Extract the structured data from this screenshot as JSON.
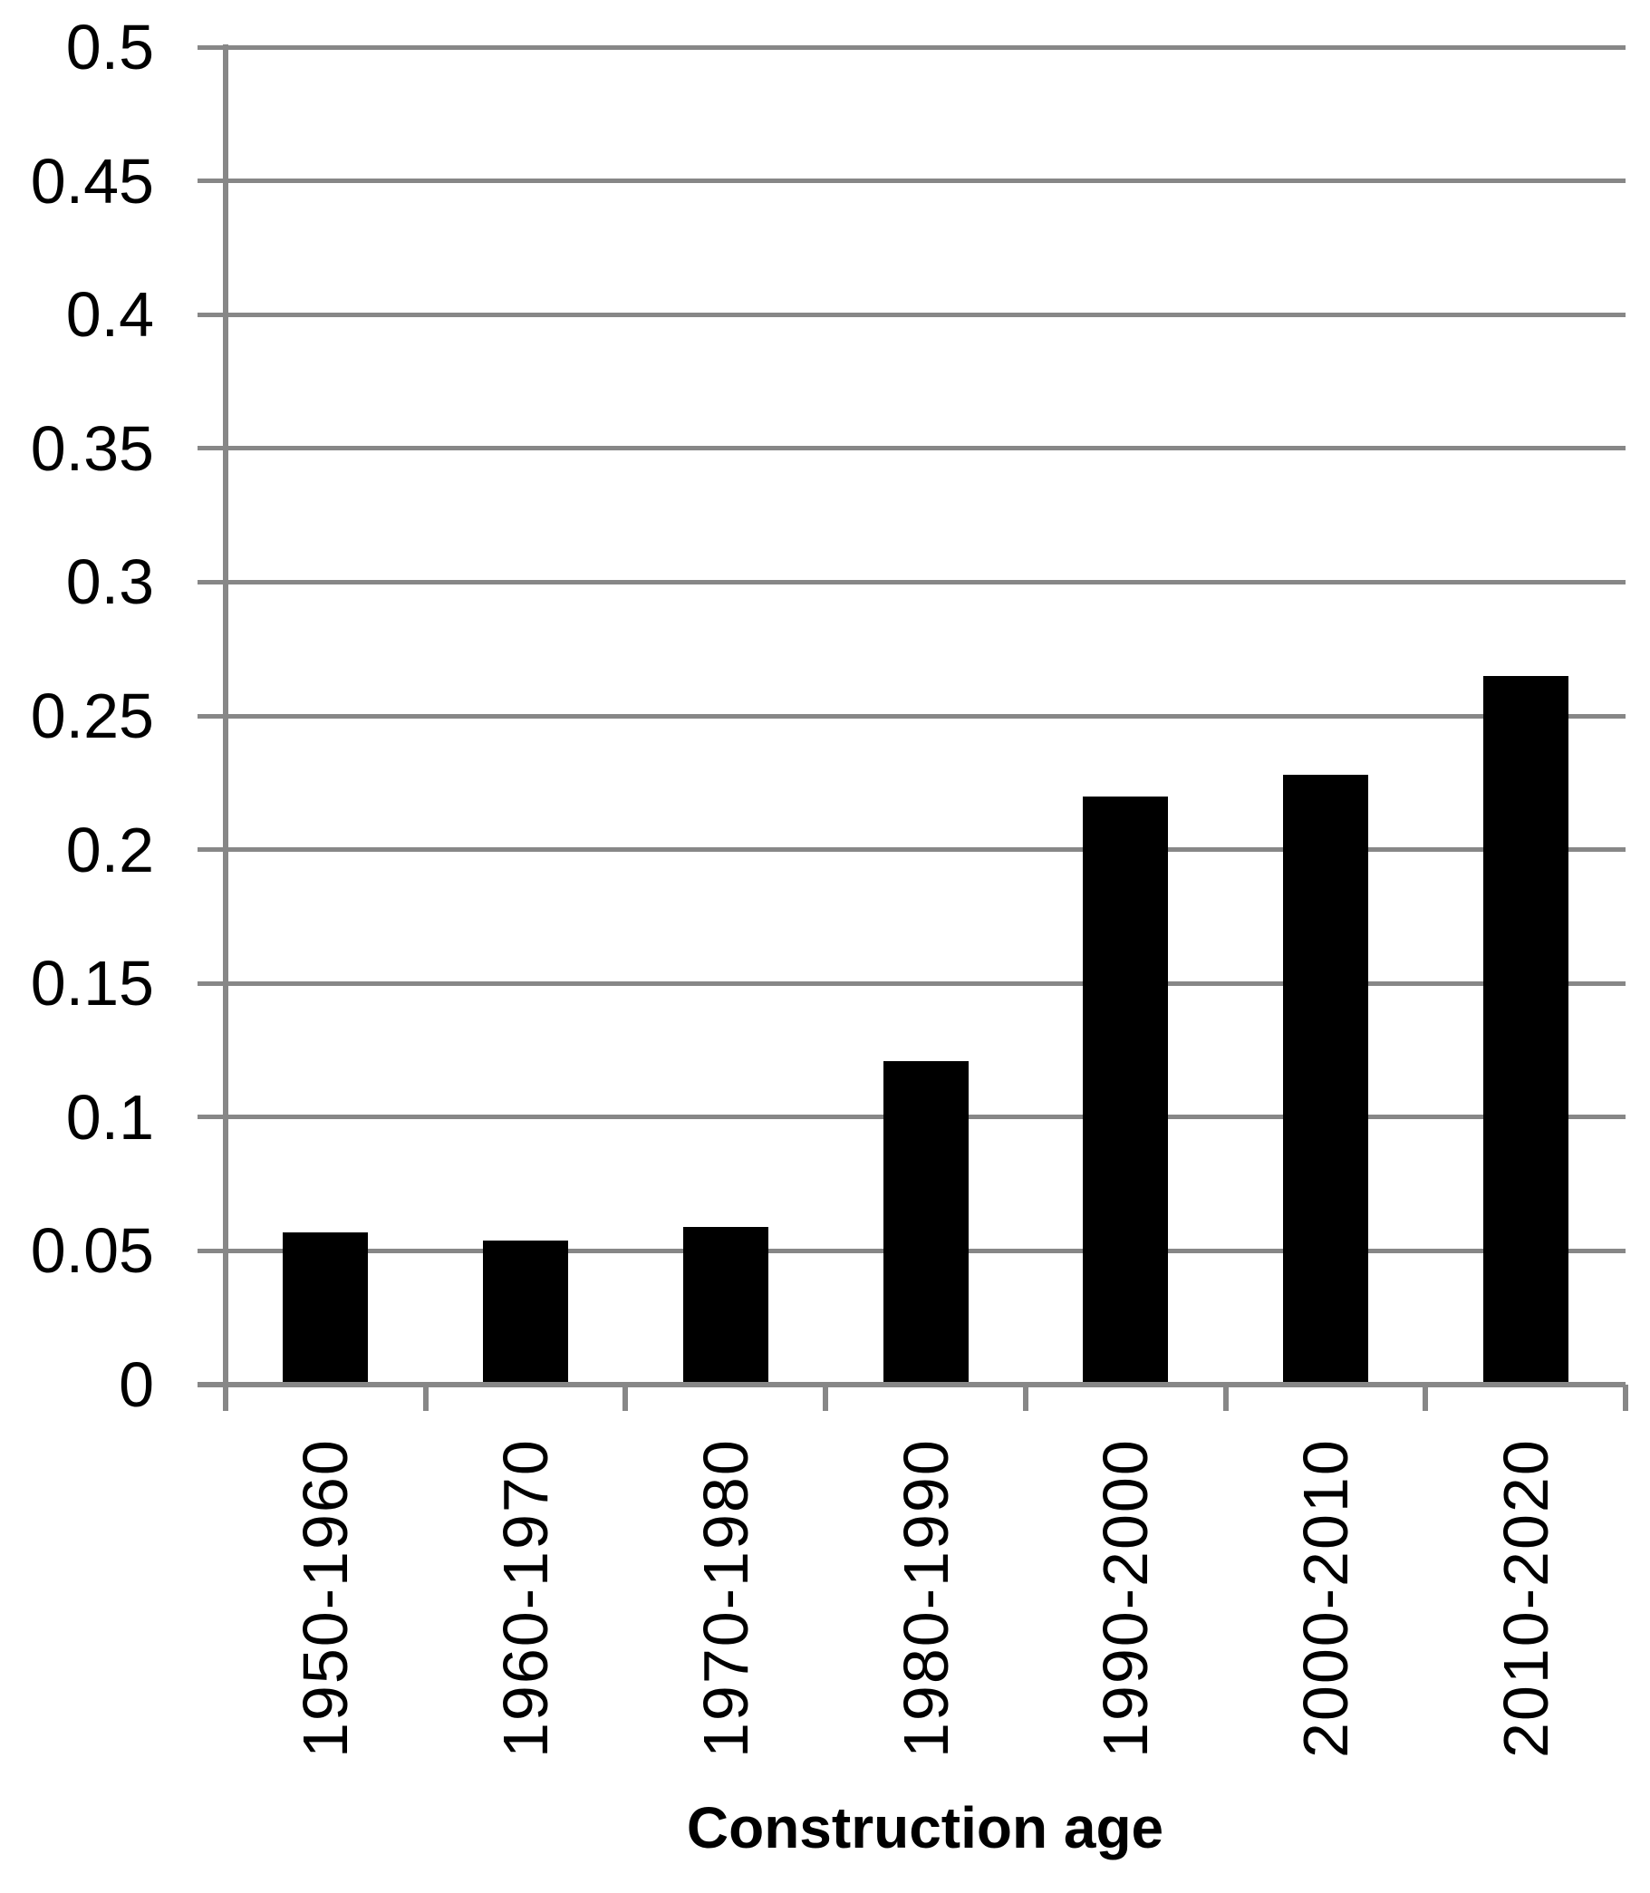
{
  "chart_data": {
    "type": "bar",
    "title": "",
    "xlabel": "Construction age",
    "ylabel": "",
    "categories": [
      "1950-1960",
      "1960-1970",
      "1970-1980",
      "1980-1990",
      "1990-2000",
      "2000-2010",
      "2010-2020"
    ],
    "values": [
      0.057,
      0.054,
      0.059,
      0.121,
      0.22,
      0.228,
      0.265
    ],
    "ylim": [
      0,
      0.5
    ],
    "ytick_labels": [
      "0.5",
      "0.45",
      "0.4",
      "0.35",
      "0.3",
      "0.25",
      "0.2",
      "0.15",
      "0.1",
      "0.05",
      "0"
    ],
    "ytick_values": [
      0.5,
      0.45,
      0.4,
      0.35,
      0.3,
      0.25,
      0.2,
      0.15,
      0.1,
      0.05,
      0
    ],
    "grid": true,
    "legend": false,
    "colors": {
      "bar": "#000000",
      "gridline": "#878787",
      "axis": "#878787",
      "text": "#000000",
      "background": "#ffffff"
    }
  }
}
